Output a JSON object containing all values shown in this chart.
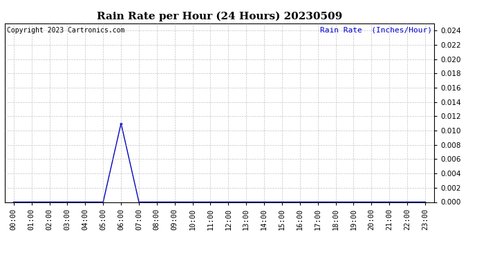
{
  "title": "Rain Rate per Hour (24 Hours) 20230509",
  "copyright_text": "Copyright 2023 Cartronics.com",
  "legend_label": "Rain Rate  (Inches/Hour)",
  "x_labels": [
    "00:00",
    "01:00",
    "02:00",
    "03:00",
    "04:00",
    "05:00",
    "06:00",
    "07:00",
    "08:00",
    "09:00",
    "10:00",
    "11:00",
    "12:00",
    "13:00",
    "14:00",
    "15:00",
    "16:00",
    "17:00",
    "18:00",
    "19:00",
    "20:00",
    "21:00",
    "22:00",
    "23:00"
  ],
  "hours": [
    0,
    1,
    2,
    3,
    4,
    5,
    6,
    7,
    8,
    9,
    10,
    11,
    12,
    13,
    14,
    15,
    16,
    17,
    18,
    19,
    20,
    21,
    22,
    23
  ],
  "values": [
    0,
    0,
    0,
    0,
    0,
    0,
    0.011,
    0,
    0,
    0,
    0,
    0,
    0,
    0,
    0,
    0,
    0,
    0,
    0,
    0,
    0,
    0,
    0,
    0
  ],
  "line_color": "#0000bb",
  "background_color": "#ffffff",
  "grid_color": "#aaaaaa",
  "title_color": "#000000",
  "legend_color": "#0000cc",
  "copyright_color": "#000000",
  "ylim": [
    0,
    0.025
  ],
  "yticks": [
    0.0,
    0.002,
    0.004,
    0.006,
    0.008,
    0.01,
    0.012,
    0.014,
    0.016,
    0.018,
    0.02,
    0.022,
    0.024
  ],
  "title_fontsize": 11,
  "legend_fontsize": 8,
  "copyright_fontsize": 7,
  "tick_fontsize": 7.5
}
